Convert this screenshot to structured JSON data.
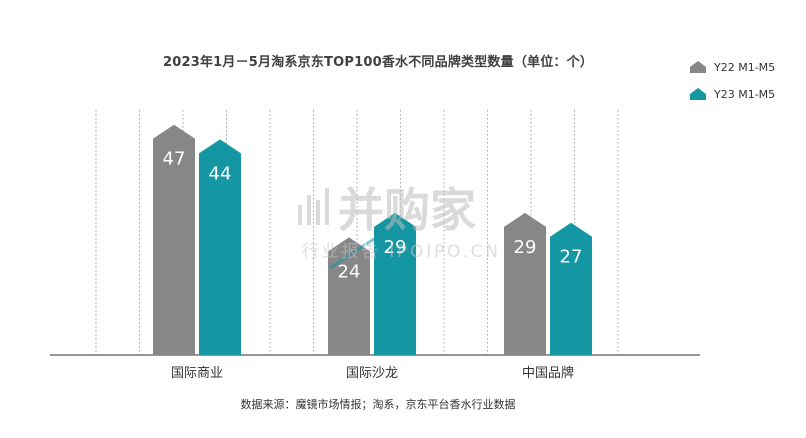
{
  "chart_data": {
    "type": "bar",
    "title": "2023年1月－5月淘系京东TOP100香水不同品牌类型数量（单位：个）",
    "categories": [
      "国际商业",
      "国际沙龙",
      "中国品牌"
    ],
    "series": [
      {
        "name": "Y22 M1-M5",
        "values": [
          47,
          24,
          29
        ],
        "color": "#878787"
      },
      {
        "name": "Y23 M1-M5",
        "values": [
          44,
          29,
          27
        ],
        "color": "#1596A3"
      }
    ],
    "ylim": [
      0,
      50
    ],
    "grid": true,
    "legend_position": "top-right"
  },
  "source": "数据来源：魔镜市场情报；淘系，京东平台香水行业数据",
  "watermark": {
    "brand": "并购家",
    "subtitle": "行业报告 IPOIPO.CN"
  }
}
